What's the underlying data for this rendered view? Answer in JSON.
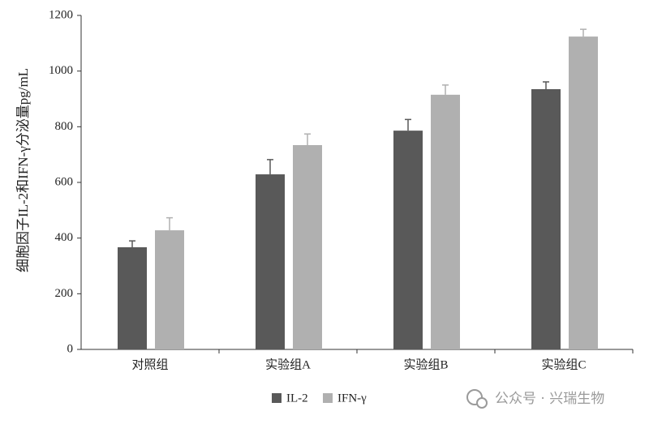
{
  "chart_data": {
    "type": "bar",
    "y_label": "细胞因子IL-2和IFN-γ分泌量pg/mL",
    "categories": [
      "对照组",
      "实验组A",
      "实验组B",
      "实验组C"
    ],
    "series": [
      {
        "name": "IL-2",
        "color": "#595959",
        "values": [
          367,
          629,
          786,
          935
        ],
        "errors": [
          23,
          53,
          40,
          26
        ]
      },
      {
        "name": "IFN-γ",
        "color": "#b0b0b0",
        "values": [
          428,
          734,
          915,
          1124
        ],
        "errors": [
          45,
          40,
          35,
          26
        ]
      }
    ],
    "ylim": [
      0,
      1200
    ],
    "yticks": [
      0,
      200,
      400,
      600,
      800,
      1000,
      1200
    ],
    "grid": false,
    "legend": "bottom"
  },
  "watermark": "公众号 · 兴瑞生物"
}
